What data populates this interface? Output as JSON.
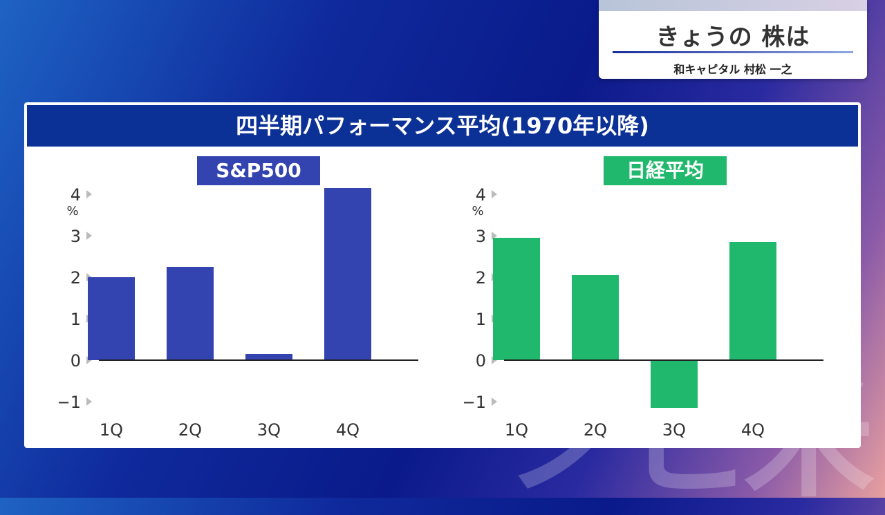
{
  "header": {
    "title": "きょうの 株は",
    "presenter": "和キャピタル 村松 一之"
  },
  "panel": {
    "title": "四半期パフォーマンス平均(1970年以降)"
  },
  "colors": {
    "sp500": "#3343b0",
    "nikkei": "#20b86c",
    "header_bg": "#0c3196"
  },
  "chart_data": [
    {
      "type": "bar",
      "title": "S&P500",
      "categories": [
        "1Q",
        "2Q",
        "3Q",
        "4Q"
      ],
      "values": [
        2.0,
        2.25,
        0.15,
        4.15
      ],
      "yunit": "%",
      "yticks": [
        "4",
        "3",
        "2",
        "1",
        "0",
        "−1"
      ],
      "ylim": [
        -1,
        4
      ],
      "grid": false,
      "color": "#3343b0"
    },
    {
      "type": "bar",
      "title": "日経平均",
      "categories": [
        "1Q",
        "2Q",
        "3Q",
        "4Q"
      ],
      "values": [
        2.95,
        2.05,
        -1.15,
        2.85
      ],
      "yunit": "%",
      "yticks": [
        "4",
        "3",
        "2",
        "1",
        "0",
        "−1"
      ],
      "ylim": [
        -1,
        4
      ],
      "grid": false,
      "color": "#20b86c"
    }
  ]
}
